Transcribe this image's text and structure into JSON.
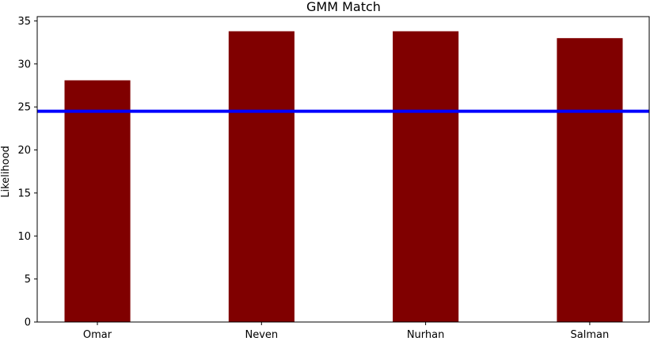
{
  "colors": {
    "bar": "#800000",
    "threshold_line": "#0000ff",
    "axis": "#000000",
    "background": "#ffffff"
  },
  "chart_data": {
    "type": "bar",
    "title": "GMM Match",
    "xlabel": "",
    "ylabel": "Likelihood",
    "categories": [
      "Omar",
      "Neven",
      "Nurhan",
      "Salman"
    ],
    "values": [
      28.1,
      33.8,
      33.8,
      33.0
    ],
    "ylim": [
      0,
      35.5
    ],
    "yticks": [
      0,
      5,
      10,
      15,
      20,
      25,
      30,
      35
    ],
    "threshold": 24.5,
    "grid": false,
    "legend": "none"
  }
}
